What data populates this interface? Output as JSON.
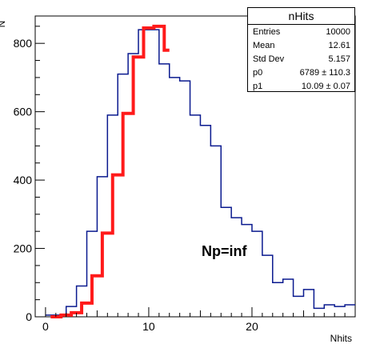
{
  "chart_data": {
    "type": "line",
    "title": "",
    "xlabel": "Nhits",
    "ylabel": "N",
    "xlim": [
      -1,
      30
    ],
    "ylim": [
      0,
      880
    ],
    "x_ticks": [
      0,
      10,
      20
    ],
    "y_ticks": [
      0,
      200,
      400,
      600,
      800
    ],
    "grid": false,
    "legend": "none",
    "histogram": {
      "name": "nHits",
      "bin_edges": [
        0,
        1,
        2,
        3,
        4,
        5,
        6,
        7,
        8,
        9,
        10,
        11,
        12,
        13,
        14,
        15,
        16,
        17,
        18,
        19,
        20,
        21,
        22,
        23,
        24,
        25,
        26,
        27,
        28,
        29,
        30
      ],
      "counts": [
        5,
        5,
        30,
        90,
        250,
        410,
        590,
        710,
        770,
        840,
        840,
        740,
        700,
        690,
        590,
        560,
        500,
        320,
        290,
        270,
        250,
        180,
        100,
        110,
        60,
        80,
        25,
        35,
        30,
        35
      ]
    },
    "fit": {
      "name": "fit",
      "bin_edges": [
        0.5,
        1.5,
        2.5,
        3.5,
        4.5,
        5.5,
        6.5,
        7.5,
        8.5,
        9.5,
        10.5,
        11.5,
        12.0
      ],
      "values": [
        0,
        5,
        12,
        40,
        120,
        245,
        415,
        595,
        760,
        845,
        850,
        780
      ]
    },
    "stats": {
      "title": "nHits",
      "rows": [
        {
          "label": "Entries",
          "value": "10000"
        },
        {
          "label": "Mean",
          "value": "12.61"
        },
        {
          "label": "Std Dev",
          "value": "5.157"
        },
        {
          "label": "p0",
          "value": "6789 ± 110.3"
        },
        {
          "label": "p1",
          "value": "10.09 ± 0.07"
        }
      ]
    },
    "annotation": "Np=inf",
    "colors": {
      "histogram": "#0a1a8f",
      "fit": "#ff1a1a",
      "axis": "#000000"
    }
  }
}
